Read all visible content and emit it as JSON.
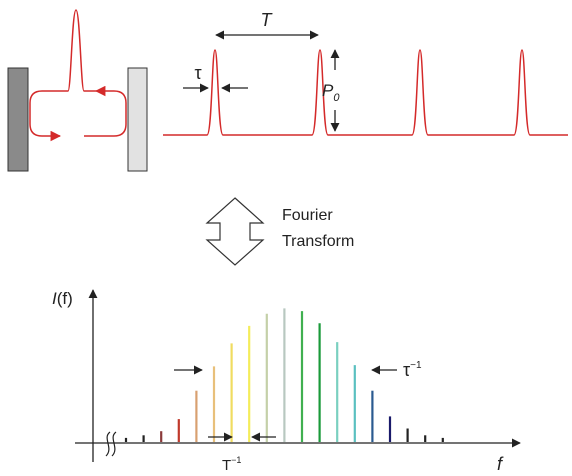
{
  "top": {
    "period_label": "T",
    "width_label": "τ",
    "power_label": "P",
    "power_subscript": "0",
    "pulse_color": "#d42a2a"
  },
  "transform": {
    "line1": "Fourier",
    "line2": "Transform"
  },
  "spectrum": {
    "y_label_main": "I",
    "y_label_arg": "(f)",
    "x_label": "f",
    "width_label": "τ",
    "width_superscript": "−1",
    "spacing_label": "T",
    "spacing_superscript": "−1",
    "lines": [
      {
        "rel_height": 0.03,
        "color": "#222222"
      },
      {
        "rel_height": 0.05,
        "color": "#222222"
      },
      {
        "rel_height": 0.08,
        "color": "#8b3a3a"
      },
      {
        "rel_height": 0.17,
        "color": "#c0392b"
      },
      {
        "rel_height": 0.38,
        "color": "#d8a070"
      },
      {
        "rel_height": 0.56,
        "color": "#e8c07a"
      },
      {
        "rel_height": 0.73,
        "color": "#f0dc60"
      },
      {
        "rel_height": 0.86,
        "color": "#f4ec5a"
      },
      {
        "rel_height": 0.95,
        "color": "#c4d0a8"
      },
      {
        "rel_height": 0.99,
        "color": "#b8c8c0"
      },
      {
        "rel_height": 0.97,
        "color": "#40b050"
      },
      {
        "rel_height": 0.88,
        "color": "#1a9a3a"
      },
      {
        "rel_height": 0.74,
        "color": "#7ad0c0"
      },
      {
        "rel_height": 0.57,
        "color": "#5ac0c0"
      },
      {
        "rel_height": 0.38,
        "color": "#2a5a90"
      },
      {
        "rel_height": 0.19,
        "color": "#1a1a6a"
      },
      {
        "rel_height": 0.1,
        "color": "#222222"
      },
      {
        "rel_height": 0.05,
        "color": "#222222"
      },
      {
        "rel_height": 0.03,
        "color": "#222222"
      }
    ]
  }
}
